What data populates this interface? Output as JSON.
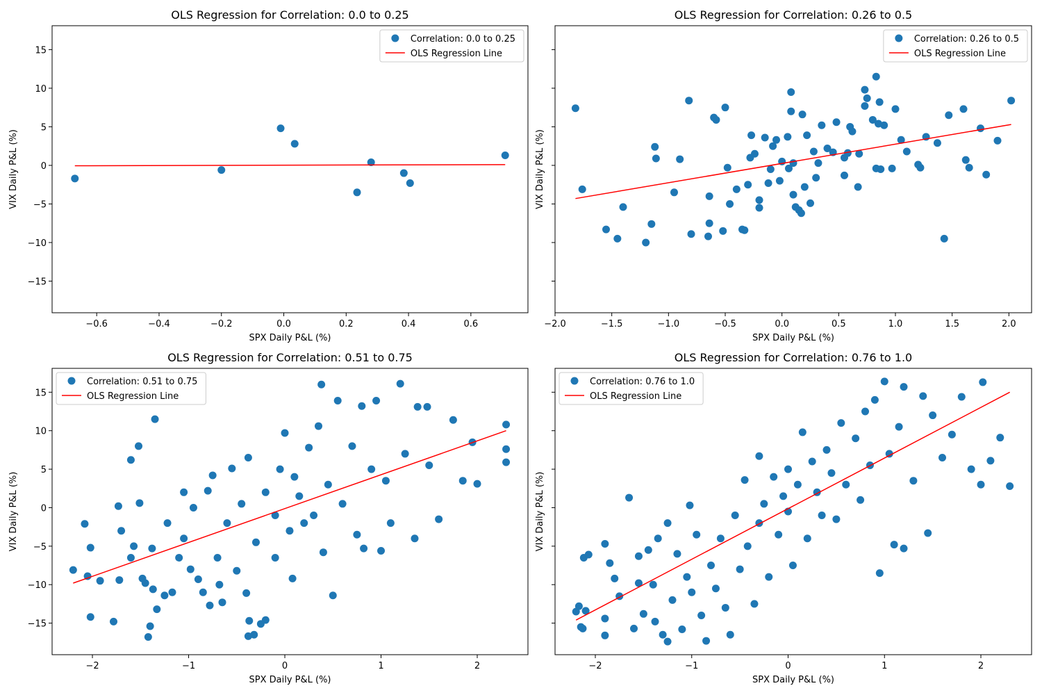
{
  "chart_data": [
    {
      "type": "scatter",
      "title": "OLS Regression for Correlation: 0.0 to 0.25",
      "xlabel": "SPX Daily P&L (%)",
      "ylabel": "VIX Daily P&L (%)",
      "xlim": [
        -0.743,
        0.783
      ],
      "ylim": [
        -19.1,
        18.1
      ],
      "xticks": [
        {
          "value": -0.6,
          "label": "−0.6"
        },
        {
          "value": -0.4,
          "label": "−0.4"
        },
        {
          "value": -0.2,
          "label": "−0.2"
        },
        {
          "value": 0,
          "label": "0.0"
        },
        0.2,
        0.4,
        0.6
      ],
      "yticks": [
        {
          "value": -15,
          "label": "−15"
        },
        {
          "value": -10,
          "label": "−10"
        },
        {
          "value": -5,
          "label": "−5"
        },
        0,
        5,
        10,
        15
      ],
      "show_ytick_labels": true,
      "legend": "upper right",
      "series": [
        {
          "name": "Correlation: 0.0 to 0.25",
          "color": "#1f77b4",
          "x": [
            -0.67,
            -0.2,
            -0.01,
            0.035,
            0.235,
            0.28,
            0.385,
            0.405,
            0.71
          ],
          "values": [
            -1.7,
            -0.6,
            4.8,
            2.8,
            -3.5,
            0.4,
            -1.0,
            -2.3,
            1.3
          ]
        },
        {
          "name": "OLS Regression Line",
          "color": "#ff0000",
          "type": "line",
          "x": [
            -0.67,
            0.71
          ],
          "values": [
            -0.05,
            0.1
          ]
        }
      ]
    },
    {
      "type": "scatter",
      "title": "OLS Regression for Correlation: 0.26 to 0.5",
      "xlabel": "SPX Daily P&L (%)",
      "ylabel": "VIX Daily P&L (%)",
      "xlim": [
        -2.0,
        2.2
      ],
      "ylim": [
        -19.1,
        18.1
      ],
      "xticks": [
        {
          "value": -2,
          "label": "−2.0"
        },
        {
          "value": -1.5,
          "label": "−1.5"
        },
        {
          "value": -1,
          "label": "−1.0"
        },
        {
          "value": -0.5,
          "label": "−0.5"
        },
        {
          "value": 0,
          "label": "0.0"
        },
        0.5,
        {
          "value": 1,
          "label": "1.0"
        },
        1.5,
        {
          "value": 2,
          "label": "2.0"
        }
      ],
      "yticks": [
        -15,
        -10,
        -5,
        0,
        5,
        10,
        15
      ],
      "show_ytick_labels": false,
      "legend": "upper right",
      "series": [
        {
          "name": "Correlation: 0.26 to 0.5",
          "color": "#1f77b4",
          "x": [
            -1.82,
            -1.76,
            -1.55,
            -1.45,
            -1.4,
            -1.2,
            -1.15,
            -1.12,
            -1.11,
            -0.95,
            -0.9,
            -0.82,
            -0.8,
            -0.65,
            -0.64,
            -0.64,
            -0.6,
            -0.58,
            -0.52,
            -0.5,
            -0.48,
            -0.46,
            -0.4,
            -0.35,
            -0.33,
            -0.3,
            -0.28,
            -0.27,
            -0.24,
            -0.2,
            -0.2,
            -0.15,
            -0.12,
            -0.1,
            -0.08,
            -0.05,
            -0.02,
            0,
            0.05,
            0.06,
            0.08,
            0.08,
            0.1,
            0.1,
            0.12,
            0.15,
            0.17,
            0.18,
            0.2,
            0.22,
            0.25,
            0.28,
            0.3,
            0.32,
            0.35,
            0.4,
            0.45,
            0.48,
            0.55,
            0.55,
            0.58,
            0.6,
            0.62,
            0.67,
            0.68,
            0.73,
            0.73,
            0.75,
            0.8,
            0.83,
            0.83,
            0.85,
            0.86,
            0.87,
            0.9,
            0.97,
            1.0,
            1.05,
            1.1,
            1.2,
            1.22,
            1.27,
            1.37,
            1.43,
            1.47,
            1.6,
            1.62,
            1.65,
            1.75,
            1.8,
            1.9,
            2.02
          ],
          "values": [
            7.4,
            -3.1,
            -8.3,
            -9.5,
            -5.4,
            -10,
            -7.6,
            2.4,
            0.9,
            -3.5,
            0.8,
            8.4,
            -8.9,
            -9.2,
            -7.5,
            -4,
            6.2,
            5.9,
            -8.5,
            7.5,
            -0.3,
            -5,
            -3.1,
            -8.3,
            -8.4,
            -2.5,
            1.0,
            3.9,
            1.5,
            -4.5,
            -5.5,
            3.6,
            -2.3,
            -0.5,
            2.5,
            3.3,
            -2.0,
            0.5,
            3.7,
            -0.4,
            7.0,
            9.5,
            -3.8,
            0.3,
            -5.4,
            -5.8,
            -6.2,
            6.6,
            -2.8,
            3.9,
            -4.9,
            1.8,
            -1.6,
            0.3,
            5.2,
            2.2,
            1.7,
            5.6,
            1.0,
            -1.3,
            1.6,
            5.0,
            4.4,
            -2.8,
            1.5,
            9.8,
            7.7,
            8.7,
            5.9,
            -0.4,
            11.5,
            5.4,
            8.2,
            -0.5,
            5.2,
            -0.4,
            7.3,
            3.3,
            1.8,
            0.1,
            -0.3,
            3.7,
            2.9,
            -9.5,
            6.5,
            7.3,
            0.7,
            -0.3,
            4.8,
            -1.2,
            3.2,
            8.4
          ]
        },
        {
          "name": "OLS Regression Line",
          "color": "#ff0000",
          "type": "line",
          "x": [
            -1.82,
            2.02
          ],
          "values": [
            -4.3,
            5.3
          ]
        }
      ]
    },
    {
      "type": "scatter",
      "title": "OLS Regression for Correlation: 0.51 to 0.75",
      "xlabel": "SPX Daily P&L (%)",
      "ylabel": "VIX Daily P&L (%)",
      "xlim": [
        -2.419,
        2.527
      ],
      "ylim": [
        -19.1,
        18.1
      ],
      "xticks": [
        {
          "value": -2,
          "label": "−2"
        },
        {
          "value": -1,
          "label": "−1"
        },
        0,
        1,
        2
      ],
      "yticks": [
        {
          "value": -15,
          "label": "−15"
        },
        {
          "value": -10,
          "label": "−10"
        },
        {
          "value": -5,
          "label": "−5"
        },
        0,
        5,
        10,
        15
      ],
      "show_ytick_labels": true,
      "legend": "upper left",
      "series": [
        {
          "name": "Correlation: 0.51 to 0.75",
          "color": "#1f77b4",
          "x": [
            -2.2,
            -2.08,
            -2.05,
            -2.02,
            -2.02,
            -1.92,
            -1.78,
            -1.73,
            -1.72,
            -1.7,
            -1.6,
            -1.6,
            -1.57,
            -1.52,
            -1.51,
            -1.48,
            -1.45,
            -1.42,
            -1.4,
            -1.38,
            -1.37,
            -1.35,
            -1.33,
            -1.25,
            -1.22,
            -1.17,
            -1.1,
            -1.05,
            -1.05,
            -0.98,
            -0.95,
            -0.9,
            -0.85,
            -0.8,
            -0.78,
            -0.75,
            -0.7,
            -0.68,
            -0.65,
            -0.6,
            -0.55,
            -0.5,
            -0.45,
            -0.4,
            -0.38,
            -0.37,
            -0.38,
            -0.32,
            -0.3,
            -0.25,
            -0.2,
            -0.2,
            -0.1,
            -0.1,
            -0.05,
            0,
            0.05,
            0.08,
            0.1,
            0.15,
            0.2,
            0.25,
            0.3,
            0.35,
            0.38,
            0.4,
            0.45,
            0.5,
            0.55,
            0.6,
            0.7,
            0.75,
            0.8,
            0.82,
            0.9,
            0.95,
            1.0,
            1.05,
            1.1,
            1.2,
            1.25,
            1.35,
            1.38,
            1.48,
            1.5,
            1.6,
            1.75,
            1.85,
            1.95,
            2.0,
            2.3,
            2.3,
            2.3
          ],
          "values": [
            -8.1,
            -2.1,
            -8.9,
            -5.2,
            -14.2,
            -9.5,
            -14.8,
            0.2,
            -9.4,
            -3.0,
            -6.5,
            6.2,
            -5.0,
            8.0,
            0.6,
            -9.2,
            -9.8,
            -16.8,
            -15.4,
            -5.3,
            -10.6,
            11.5,
            -13.2,
            -11.4,
            -2.0,
            -11.0,
            -6.5,
            -4.0,
            2.0,
            -8.0,
            0.0,
            -9.3,
            -11.0,
            2.2,
            -12.7,
            4.2,
            -6.5,
            -10.0,
            -12.3,
            -2.0,
            5.1,
            -8.2,
            0.5,
            -11.1,
            6.5,
            -14.7,
            -16.7,
            -16.5,
            -4.5,
            -15.1,
            -14.6,
            2.0,
            -1.0,
            -6.5,
            5.0,
            9.7,
            -3.0,
            -9.2,
            4.0,
            1.5,
            -2.0,
            7.8,
            -1.0,
            10.6,
            16.0,
            -5.8,
            3.0,
            -11.4,
            13.9,
            0.5,
            8.0,
            -3.5,
            13.2,
            -5.3,
            5.0,
            13.9,
            -5.6,
            3.5,
            -2.0,
            16.1,
            7.0,
            -4.0,
            13.1,
            13.1,
            5.5,
            -1.5,
            11.4,
            3.5,
            8.5,
            3.1,
            10.8,
            7.6,
            5.9
          ]
        },
        {
          "name": "OLS Regression Line",
          "color": "#ff0000",
          "type": "line",
          "x": [
            -2.2,
            2.3
          ],
          "values": [
            -9.8,
            10.0
          ]
        }
      ]
    },
    {
      "type": "scatter",
      "title": "OLS Regression for Correlation: 0.76 to 1.0",
      "xlabel": "SPX Daily P&L (%)",
      "ylabel": "VIX Daily P&L (%)",
      "xlim": [
        -2.418,
        2.526
      ],
      "ylim": [
        -19.1,
        18.1
      ],
      "xticks": [
        {
          "value": -2,
          "label": "−2"
        },
        {
          "value": -1,
          "label": "−1"
        },
        0,
        1,
        2
      ],
      "yticks": [
        -15,
        -10,
        -5,
        0,
        5,
        10,
        15
      ],
      "show_ytick_labels": false,
      "legend": "upper left",
      "series": [
        {
          "name": "Correlation: 0.76 to 1.0",
          "color": "#1f77b4",
          "x": [
            -2.2,
            -2.17,
            -2.15,
            -2.13,
            -2.12,
            -2.1,
            -2.07,
            -1.9,
            -1.9,
            -1.9,
            -1.85,
            -1.8,
            -1.75,
            -1.65,
            -1.6,
            -1.55,
            -1.55,
            -1.5,
            -1.45,
            -1.4,
            -1.38,
            -1.35,
            -1.3,
            -1.25,
            -1.25,
            -1.2,
            -1.15,
            -1.1,
            -1.05,
            -1.02,
            -1.0,
            -0.95,
            -0.9,
            -0.85,
            -0.8,
            -0.75,
            -0.7,
            -0.65,
            -0.6,
            -0.55,
            -0.5,
            -0.45,
            -0.42,
            -0.35,
            -0.3,
            -0.3,
            -0.25,
            -0.2,
            -0.15,
            -0.1,
            -0.05,
            0,
            0,
            0.05,
            0.1,
            0.15,
            0.2,
            0.25,
            0.3,
            0.35,
            0.4,
            0.45,
            0.5,
            0.55,
            0.6,
            0.7,
            0.75,
            0.8,
            0.85,
            0.9,
            0.95,
            1.0,
            1.05,
            1.1,
            1.15,
            1.2,
            1.2,
            1.3,
            1.4,
            1.45,
            1.5,
            1.6,
            1.7,
            1.8,
            1.9,
            2.0,
            2.02,
            2.1,
            2.2,
            2.3
          ],
          "values": [
            -13.5,
            -12.8,
            -15.5,
            -15.7,
            -6.5,
            -13.4,
            -6.1,
            -4.7,
            -14.4,
            -16.6,
            -7.2,
            -9.2,
            -11.5,
            1.3,
            -15.7,
            -9.8,
            -6.3,
            -13.8,
            -5.5,
            -10.0,
            -14.8,
            -4.0,
            -16.5,
            -17.4,
            -2.0,
            -12.0,
            -6.0,
            -15.8,
            -9.0,
            0.3,
            -11.0,
            -3.5,
            -14.0,
            -17.3,
            -7.5,
            -10.5,
            -4.0,
            -13.0,
            -16.5,
            -1.0,
            -8.0,
            3.6,
            -5.0,
            -12.5,
            6.7,
            -2.0,
            0.5,
            -9.0,
            4.0,
            -3.5,
            1.5,
            -0.5,
            5.0,
            -7.5,
            3.0,
            9.8,
            -4.0,
            6.0,
            2.0,
            -1.0,
            7.5,
            4.5,
            -1.5,
            11.0,
            3.0,
            9.0,
            1.0,
            12.5,
            5.5,
            14.0,
            -8.5,
            16.4,
            7.0,
            -4.8,
            10.5,
            -5.3,
            15.7,
            3.5,
            14.5,
            -3.3,
            12.0,
            6.5,
            9.5,
            14.4,
            5.0,
            3.0,
            16.3,
            6.1,
            9.1,
            2.8
          ]
        },
        {
          "name": "OLS Regression Line",
          "color": "#ff0000",
          "type": "line",
          "x": [
            -2.2,
            2.3
          ],
          "values": [
            -14.6,
            15.0
          ]
        }
      ]
    }
  ]
}
